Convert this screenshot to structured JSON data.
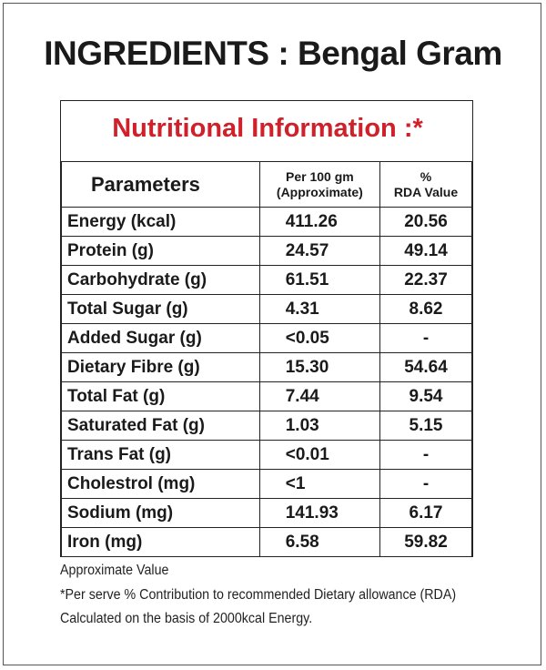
{
  "title": "INGREDIENTS : Bengal Gram",
  "nutrition": {
    "heading": "Nutritional Information :*",
    "headers": {
      "parameters": "Parameters",
      "per100_line1": "Per 100 gm",
      "per100_line2": "(Approximate)",
      "rda_line1": "%",
      "rda_line2": "RDA Value"
    },
    "rows": [
      {
        "param": "Energy (kcal)",
        "per100": "411.26",
        "rda": "20.56"
      },
      {
        "param": "Protein (g)",
        "per100": "24.57",
        "rda": "49.14"
      },
      {
        "param": "Carbohydrate (g)",
        "per100": "61.51",
        "rda": "22.37"
      },
      {
        "param": "Total Sugar (g)",
        "per100": "4.31",
        "rda": "8.62"
      },
      {
        "param": "Added Sugar (g)",
        "per100": "<0.05",
        "rda": "-"
      },
      {
        "param": "Dietary Fibre (g)",
        "per100": "15.30",
        "rda": "54.64"
      },
      {
        "param": "Total Fat (g)",
        "per100": "7.44",
        "rda": "9.54"
      },
      {
        "param": "Saturated Fat (g)",
        "per100": "1.03",
        "rda": "5.15"
      },
      {
        "param": "Trans Fat (g)",
        "per100": "<0.01",
        "rda": "-"
      },
      {
        "param": "Cholestrol (mg)",
        "per100": "<1",
        "rda": "-"
      },
      {
        "param": "Sodium (mg)",
        "per100": "141.93",
        "rda": "6.17"
      },
      {
        "param": "Iron (mg)",
        "per100": "6.58",
        "rda": "59.82"
      }
    ]
  },
  "footnotes": [
    "Approximate Value",
    "*Per serve % Contribution to recommended Dietary allowance (RDA)",
    " Calculated on the basis of 2000kcal Energy."
  ],
  "colors": {
    "heading_red": "#d0202a",
    "text": "#1a1a1a"
  }
}
